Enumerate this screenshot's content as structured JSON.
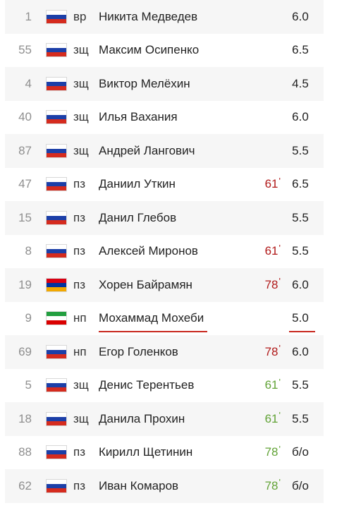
{
  "colors": {
    "row_alt_background": "#f6f6f6",
    "substitution_out": "#b11a1a",
    "substitution_in": "#62a337",
    "highlight_underline": "#c8281e"
  },
  "flags": {
    "russia": [
      "#ffffff",
      "#1c3fa8",
      "#d52b1e"
    ],
    "armenia": [
      "#d90012",
      "#0033a0",
      "#f2a800"
    ],
    "iran": [
      "#239f40",
      "#ffffff",
      "#da0000"
    ]
  },
  "players": [
    {
      "number": "1",
      "flag": "russia",
      "position": "вр",
      "name": "Никита Медведев",
      "minute": "",
      "sub": "",
      "rating": "6.0"
    },
    {
      "number": "55",
      "flag": "russia",
      "position": "зщ",
      "name": "Максим Осипенко",
      "minute": "",
      "sub": "",
      "rating": "6.5"
    },
    {
      "number": "4",
      "flag": "russia",
      "position": "зщ",
      "name": "Виктор Мелёхин",
      "minute": "",
      "sub": "",
      "rating": "4.5"
    },
    {
      "number": "40",
      "flag": "russia",
      "position": "зщ",
      "name": "Илья Вахания",
      "minute": "",
      "sub": "",
      "rating": "6.0"
    },
    {
      "number": "87",
      "flag": "russia",
      "position": "зщ",
      "name": "Андрей Лангович",
      "minute": "",
      "sub": "",
      "rating": "5.5"
    },
    {
      "number": "47",
      "flag": "russia",
      "position": "пз",
      "name": "Даниил Уткин",
      "minute": "61",
      "sub": "out",
      "rating": "6.5"
    },
    {
      "number": "15",
      "flag": "russia",
      "position": "пз",
      "name": "Данил Глебов",
      "minute": "",
      "sub": "",
      "rating": "5.5"
    },
    {
      "number": "8",
      "flag": "russia",
      "position": "пз",
      "name": "Алексей Миронов",
      "minute": "61",
      "sub": "out",
      "rating": "5.5"
    },
    {
      "number": "19",
      "flag": "armenia",
      "position": "пз",
      "name": "Хорен Байрамян",
      "minute": "78",
      "sub": "out",
      "rating": "6.0"
    },
    {
      "number": "9",
      "flag": "iran",
      "position": "нп",
      "name": "Мохаммад Мохеби",
      "minute": "",
      "sub": "",
      "rating": "5.0",
      "highlighted": true
    },
    {
      "number": "69",
      "flag": "russia",
      "position": "нп",
      "name": "Егор Голенков",
      "minute": "78",
      "sub": "out",
      "rating": "6.0"
    },
    {
      "number": "5",
      "flag": "russia",
      "position": "зщ",
      "name": "Денис Терентьев",
      "minute": "61",
      "sub": "in",
      "rating": "5.5"
    },
    {
      "number": "18",
      "flag": "russia",
      "position": "зщ",
      "name": "Данила Прохин",
      "minute": "61",
      "sub": "in",
      "rating": "5.5"
    },
    {
      "number": "88",
      "flag": "russia",
      "position": "пз",
      "name": "Кирилл Щетинин",
      "minute": "78",
      "sub": "in",
      "rating": "б/о"
    },
    {
      "number": "62",
      "flag": "russia",
      "position": "пз",
      "name": "Иван Комаров",
      "minute": "78",
      "sub": "in",
      "rating": "б/о"
    }
  ]
}
